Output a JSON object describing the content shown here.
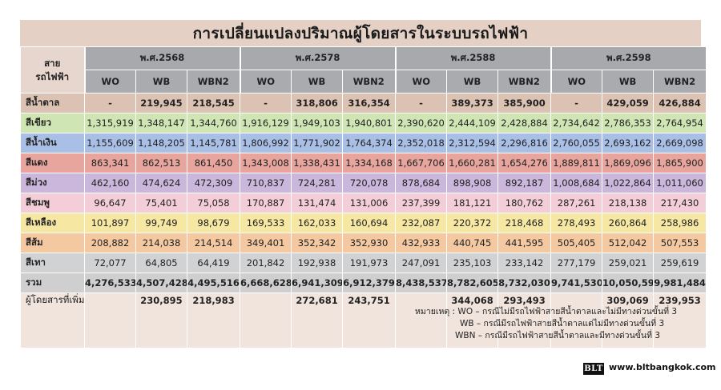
{
  "title": "การเปลี่ยนแปลงปริมาณผู้โดยสารในระบบรถไฟฟ้า",
  "line_header": [
    "สาย",
    "รถไฟฟ้า"
  ],
  "years": [
    "พ.ศ.2568",
    "พ.ศ.2578",
    "พ.ศ.2588",
    "พ.ศ.2598"
  ],
  "scenarios": [
    "WO",
    "WB",
    "WBN2"
  ],
  "rows": [
    {
      "line": "สีน้ำตาล",
      "values": [
        "-",
        "219,945",
        "218,545",
        "-",
        "318,806",
        "316,354",
        "-",
        "389,373",
        "385,900",
        "-",
        "429,059",
        "426,884"
      ]
    },
    {
      "line": "สีเขียว",
      "values": [
        "1,315,919",
        "1,348,147",
        "1,344,760",
        "1,916,129",
        "1,949,103",
        "1,940,801",
        "2,390,620",
        "2,444,109",
        "2,428,884",
        "2,734,642",
        "2,786,353",
        "2,764,954"
      ]
    },
    {
      "line": "สีน้ำเงิน",
      "values": [
        "1,155,609",
        "1,148,205",
        "1,145,781",
        "1,806,992",
        "1,771,902",
        "1,764,374",
        "2,352,018",
        "2,312,594",
        "2,296,816",
        "2,760,055",
        "2,693,162",
        "2,669,098"
      ]
    },
    {
      "line": "สีแดง",
      "values": [
        "863,341",
        "862,513",
        "861,450",
        "1,343,008",
        "1,338,431",
        "1,334,168",
        "1,667,706",
        "1,660,281",
        "1,654,276",
        "1,889,811",
        "1,869,096",
        "1,865,900"
      ]
    },
    {
      "line": "สีม่วง",
      "values": [
        "462,160",
        "474,624",
        "472,309",
        "710,837",
        "724,281",
        "720,078",
        "878,684",
        "898,908",
        "892,187",
        "1,008,684",
        "1,022,864",
        "1,011,060"
      ]
    },
    {
      "line": "สีชมพู",
      "values": [
        "96,647",
        "75,401",
        "75,058",
        "170,887",
        "131,474",
        "131,006",
        "237,399",
        "181,121",
        "180,762",
        "287,261",
        "218,138",
        "217,430"
      ]
    },
    {
      "line": "สีเหลือง",
      "values": [
        "101,897",
        "99,749",
        "98,679",
        "169,533",
        "162,033",
        "160,694",
        "232,087",
        "220,372",
        "218,468",
        "278,493",
        "260,864",
        "258,986"
      ]
    },
    {
      "line": "สีส้ม",
      "values": [
        "208,882",
        "214,038",
        "214,514",
        "349,401",
        "352,342",
        "352,930",
        "432,933",
        "440,745",
        "441,595",
        "505,405",
        "512,042",
        "507,553"
      ]
    },
    {
      "line": "สีเทา",
      "values": [
        "72,077",
        "64,805",
        "64,419",
        "201,842",
        "192,938",
        "191,973",
        "247,091",
        "235,103",
        "233,142",
        "277,179",
        "259,021",
        "259,619"
      ]
    }
  ],
  "total": {
    "line": "รวม",
    "values": [
      "4,276,533",
      "4,507,428",
      "4,495,516",
      "6,668,628",
      "6,941,309",
      "6,912,379",
      "8,438,537",
      "8,782,605",
      "8,732,030",
      "9,741,530",
      "10,050,599",
      "9,981,484"
    ]
  },
  "extra": {
    "line": "ผู้โดยสารที่เพิ่มขึ้นจากกรณีมีรถไฟฟ้าสายสีน้ำตาล",
    "values": [
      "",
      "230,895",
      "218,983",
      "",
      "272,681",
      "243,751",
      "",
      "344,068",
      "293,493",
      "",
      "309,069",
      "239,953"
    ]
  },
  "notes": [
    "หมายเหตุ : WO – กรณีไม่มีรถไฟฟ้าสายสีน้ำตาลและไม่มีทางด่วนขั้นที่ 3",
    "WB – กรณีมีรถไฟฟ้าสายสีน้ำตาลแต่ไม่มีทางด่วนขั้นที่ 3",
    "WBN – กรณีมีรถไฟฟ้าสายสีน้ำตาลและมีทางด่วนขั้นที่ 3"
  ],
  "logo_text": "BLT",
  "website": "www.bltbangkok.com"
}
